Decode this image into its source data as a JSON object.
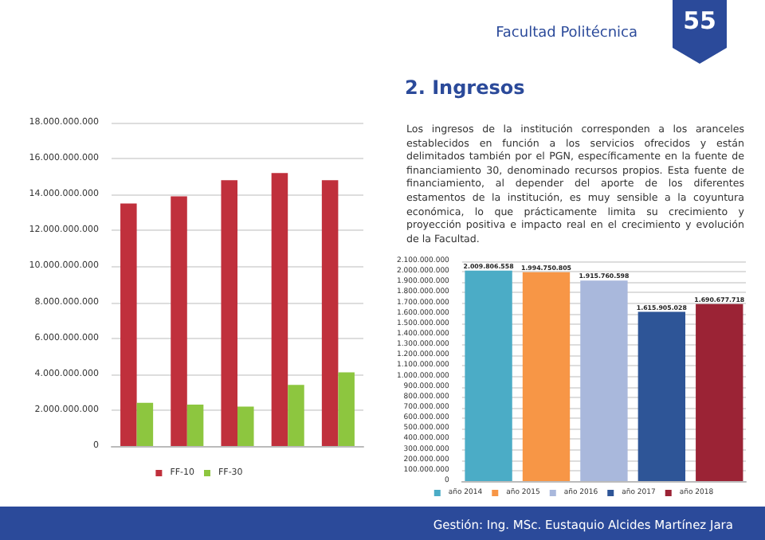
{
  "chart_data": [
    {
      "type": "other",
      "title": "2. Ingresos",
      "annotations": [
        "Facultad Politécnica",
        "55",
        "Los ingresos de la institución corresponden a los aranceles establecidos en función a los servicios ofrecidos y están delimitados también por el PGN, específicamente en la fuente de financiamiento 30, denominado recursos propios. Esta fuente de financiamiento, al depender del aporte de los diferentes estamentos de la institución, es muy sensible a la coyuntura económica, lo que prácticamente limita su crecimiento y proyección positiva e impacto real en el crecimiento y evolución de la Facultad.",
        "Gestión: Ing. MSc. Eustaquio Alcides Martínez Jara"
      ]
    },
    {
      "type": "bar",
      "categories": [
        null,
        null,
        null,
        null,
        null
      ],
      "series": [
        {
          "name": "FF-10",
          "color": "#c0303c",
          "values": [
            13500000000,
            13900000000,
            14800000000,
            15200000000,
            14800000000
          ]
        },
        {
          "name": "FF-30",
          "color": "#8dc63f",
          "values": [
            2400000000,
            2300000000,
            2200000000,
            3400000000,
            4100000000
          ]
        }
      ],
      "ylim": [
        0,
        18000000000
      ],
      "yticks": [
        {
          "value": 0,
          "label": "0"
        },
        {
          "value": 2000000000,
          "label": "2.000.000.000"
        },
        {
          "value": 4000000000,
          "label": "4.000.000.000"
        },
        {
          "value": 6000000000,
          "label": "6.000.000.000"
        },
        {
          "value": 8000000000,
          "label": "8.000.000.000"
        },
        {
          "value": 10000000000,
          "label": "10.000.000.000"
        },
        {
          "value": 12000000000,
          "label": "12.000.000.000"
        },
        {
          "value": 14000000000,
          "label": "14.000.000.000"
        },
        {
          "value": 16000000000,
          "label": "16.000.000.000"
        },
        {
          "value": 18000000000,
          "label": "18.000.000.000"
        }
      ],
      "grid": "y",
      "legend": "bottom",
      "tick_labels": "y"
    },
    {
      "type": "bar",
      "categories": [
        null
      ],
      "series": [
        {
          "name": "año 2014",
          "color": "#4bacc6",
          "values": [
            2009806558
          ],
          "value_labels": [
            "2.009.806.558"
          ]
        },
        {
          "name": "año 2015",
          "color": "#f79646",
          "values": [
            1994750805
          ],
          "value_labels": [
            "1.994.750.805"
          ]
        },
        {
          "name": "año 2016",
          "color": "#a9b8dc",
          "values": [
            1915760598
          ],
          "value_labels": [
            "1.915.760.598"
          ]
        },
        {
          "name": "año 2017",
          "color": "#2e5597",
          "values": [
            1615905028
          ],
          "value_labels": [
            "1.615.905.028"
          ]
        },
        {
          "name": "año 2018",
          "color": "#9b2335",
          "values": [
            1690677718
          ],
          "value_labels": [
            "1.690.677.718"
          ]
        }
      ],
      "ylim": [
        0,
        2100000000
      ],
      "yticks": [
        {
          "value": 0,
          "label": "0"
        },
        {
          "value": 100000000,
          "label": "100.000.000"
        },
        {
          "value": 200000000,
          "label": "200.000.000"
        },
        {
          "value": 300000000,
          "label": "300.000.000"
        },
        {
          "value": 400000000,
          "label": "400.000.000"
        },
        {
          "value": 500000000,
          "label": "500.000.000"
        },
        {
          "value": 600000000,
          "label": "600.000.000"
        },
        {
          "value": 700000000,
          "label": "700.000.000"
        },
        {
          "value": 800000000,
          "label": "800.000.000"
        },
        {
          "value": 900000000,
          "label": "900.000.000"
        },
        {
          "value": 1000000000,
          "label": "1.000.000.000"
        },
        {
          "value": 1100000000,
          "label": "1.100.000.000"
        },
        {
          "value": 1200000000,
          "label": "1.200.000.000"
        },
        {
          "value": 1300000000,
          "label": "1.300.000.000"
        },
        {
          "value": 1400000000,
          "label": "1.400.000.000"
        },
        {
          "value": 1500000000,
          "label": "1.500.000.000"
        },
        {
          "value": 1600000000,
          "label": "1.600.000.000"
        },
        {
          "value": 1700000000,
          "label": "1.700.000.000"
        },
        {
          "value": 1800000000,
          "label": "1.800.000.000"
        },
        {
          "value": 1900000000,
          "label": "1.900.000.000"
        },
        {
          "value": 2000000000,
          "label": "2.000.000.000"
        },
        {
          "value": 2100000000,
          "label": "2.100.000.000"
        }
      ],
      "grid": "y",
      "legend": "bottom",
      "tick_labels": "y"
    }
  ]
}
